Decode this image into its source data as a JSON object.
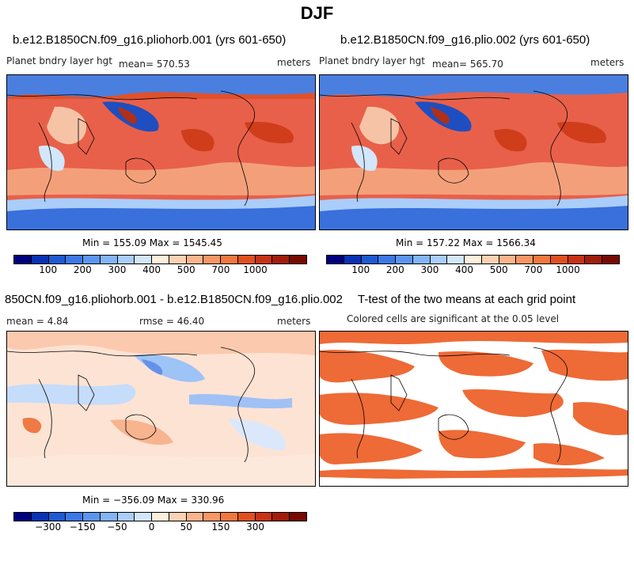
{
  "title": "DJF",
  "panels": {
    "p1": {
      "title": "b.e12.B1850CN.f09_g16.pliohorb.001 (yrs 601-650)",
      "variable": "Planet bndry layer hgt",
      "mean": "mean= 570.53",
      "units": "meters",
      "minmax": "Min = 155.09 Max = 1545.45"
    },
    "p2": {
      "title": "b.e12.B1850CN.f09_g16.plio.002 (yrs 601-650)",
      "variable": "Planet bndry layer hgt",
      "mean": "mean= 565.70",
      "units": "meters",
      "minmax": "Min = 157.22 Max = 1566.34"
    },
    "p3": {
      "title": "850CN.f09_g16.pliohorb.001 - b.e12.B1850CN.f09_g16.plio.002",
      "mean": "mean =    4.84",
      "rmse": "rmse =   46.40",
      "units": "meters",
      "minmax": "Min = −356.09 Max = 330.96"
    },
    "p4": {
      "title": "T-test of the two means at each grid point",
      "subtitle": "Colored cells are significant at the 0.05 level"
    }
  },
  "colorbars": {
    "abs": {
      "colors": [
        "#00007f",
        "#0a32b4",
        "#1e5ad2",
        "#3c78e6",
        "#5a96f0",
        "#82b4f8",
        "#aacdfa",
        "#d2e6fc",
        "#fff0dc",
        "#fdd2b4",
        "#fbb48c",
        "#f89664",
        "#f0783c",
        "#e0501e",
        "#c83214",
        "#a01e0a",
        "#780a00"
      ],
      "ticks": [
        "100",
        "200",
        "300",
        "400",
        "500",
        "700",
        "1000"
      ]
    },
    "diff": {
      "colors": [
        "#00007f",
        "#0a32b4",
        "#1e5ad2",
        "#3c78e6",
        "#5a96f0",
        "#82b4f8",
        "#aacdfa",
        "#d2e6fc",
        "#fff0dc",
        "#fdd2b4",
        "#fbb48c",
        "#f89664",
        "#f0783c",
        "#e0501e",
        "#c83214",
        "#a01e0a",
        "#780a00"
      ],
      "ticks": [
        "−300",
        "−150",
        "−50",
        "0",
        "50",
        "150",
        "300"
      ]
    }
  },
  "legend": {
    "significant_color": "#ee6a36"
  }
}
